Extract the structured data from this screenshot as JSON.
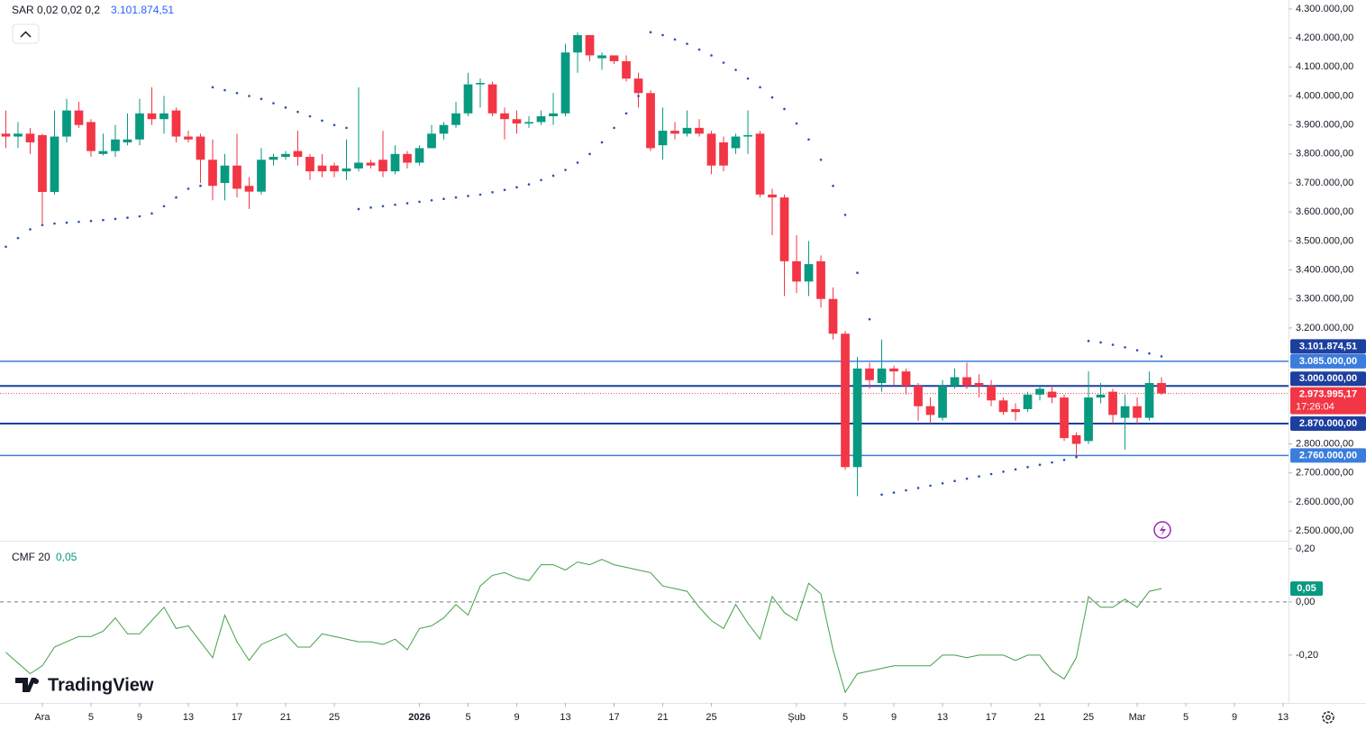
{
  "chart_data": [
    {
      "type": "candlestick",
      "indicator": "SAR 0,02 0,02 0,2",
      "up_color": "#089981",
      "down_color": "#f23645",
      "open": [
        3870000,
        3860000,
        3870000,
        3865000,
        3669000,
        3860000,
        3950000,
        3910000,
        3800000,
        3810000,
        3840000,
        3850000,
        3940000,
        3920000,
        3950000,
        3860000,
        3860000,
        3780000,
        3700000,
        3760000,
        3690000,
        3670000,
        3780000,
        3790000,
        3810000,
        3790000,
        3760000,
        3760000,
        3740000,
        3750000,
        3770000,
        3780000,
        3740000,
        3800000,
        3770000,
        3820000,
        3870000,
        3900000,
        3940000,
        4040000,
        4040000,
        3940000,
        3920000,
        3905000,
        3910000,
        3930000,
        3940000,
        4150000,
        4210000,
        4130000,
        4140000,
        4120000,
        4060000,
        4010000,
        3830000,
        3880000,
        3870000,
        3890000,
        3870000,
        3840000,
        3820000,
        3860000,
        3870000,
        3660000,
        3650000,
        3430000,
        3360000,
        3430000,
        3300000,
        3180000,
        2720000,
        3060000,
        3010000,
        3060000,
        3050000,
        3000000,
        2930000,
        2890000,
        3000000,
        3030000,
        3010000,
        3000000,
        2950000,
        2920000,
        2920000,
        2970000,
        2980000,
        2960000,
        2830000,
        2810000,
        2960000,
        2980000,
        2890000,
        2930000,
        2890000,
        3010000
      ],
      "high": [
        3950000,
        3910000,
        3890000,
        3870000,
        3950000,
        3990000,
        3980000,
        3920000,
        3870000,
        3900000,
        3940000,
        3990000,
        4030000,
        4000000,
        3960000,
        3880000,
        3870000,
        3850000,
        3800000,
        3870000,
        3720000,
        3820000,
        3800000,
        3810000,
        3880000,
        3800000,
        3800000,
        3770000,
        3850000,
        4030000,
        3780000,
        3880000,
        3830000,
        3810000,
        3830000,
        3900000,
        3910000,
        3980000,
        4080000,
        4060000,
        4050000,
        3960000,
        3950000,
        3930000,
        3950000,
        4010000,
        4180000,
        4220000,
        4210000,
        4150000,
        4140000,
        4140000,
        4080000,
        4020000,
        3960000,
        3910000,
        3950000,
        3920000,
        3880000,
        3860000,
        3870000,
        3950000,
        3880000,
        3680000,
        3660000,
        3520000,
        3500000,
        3450000,
        3340000,
        3190000,
        3100000,
        3080000,
        3160000,
        3070000,
        3060000,
        3010000,
        2960000,
        3020000,
        3060000,
        3080000,
        3040000,
        3020000,
        2960000,
        2940000,
        2980000,
        3000000,
        3000000,
        2970000,
        2840000,
        3050000,
        3010000,
        2990000,
        2970000,
        2960000,
        3050000,
        3030000
      ],
      "low": [
        3820000,
        3820000,
        3800000,
        3560000,
        3660000,
        3840000,
        3890000,
        3790000,
        3795000,
        3790000,
        3830000,
        3830000,
        3900000,
        3870000,
        3840000,
        3840000,
        3700000,
        3640000,
        3640000,
        3650000,
        3610000,
        3660000,
        3760000,
        3780000,
        3760000,
        3710000,
        3720000,
        3720000,
        3710000,
        3740000,
        3750000,
        3720000,
        3730000,
        3750000,
        3760000,
        3820000,
        3850000,
        3890000,
        3930000,
        3960000,
        3930000,
        3850000,
        3870000,
        3890000,
        3900000,
        3900000,
        3930000,
        4080000,
        4120000,
        4090000,
        4110000,
        4050000,
        3960000,
        3810000,
        3780000,
        3850000,
        3860000,
        3860000,
        3730000,
        3740000,
        3800000,
        3800000,
        3650000,
        3520000,
        3310000,
        3320000,
        3310000,
        3270000,
        3160000,
        2710000,
        2620000,
        2990000,
        2980000,
        3000000,
        2970000,
        2880000,
        2870000,
        2880000,
        2990000,
        2990000,
        2960000,
        2930000,
        2900000,
        2880000,
        2910000,
        2950000,
        2940000,
        2810000,
        2750000,
        2800000,
        2940000,
        2870000,
        2780000,
        2870000,
        2880000,
        2970000
      ],
      "close": [
        3860000,
        3870000,
        3840000,
        3669000,
        3860000,
        3950000,
        3900000,
        3810000,
        3810000,
        3850000,
        3850000,
        3940000,
        3920000,
        3940000,
        3860000,
        3850000,
        3780000,
        3690000,
        3760000,
        3680000,
        3670000,
        3780000,
        3790000,
        3800000,
        3790000,
        3740000,
        3740000,
        3740000,
        3750000,
        3770000,
        3760000,
        3740000,
        3800000,
        3770000,
        3820000,
        3870000,
        3900000,
        3940000,
        4040000,
        4045000,
        3940000,
        3920000,
        3905000,
        3910000,
        3930000,
        3940000,
        4150000,
        4210000,
        4140000,
        4140000,
        4120000,
        4060000,
        4010000,
        3820000,
        3880000,
        3870000,
        3890000,
        3870000,
        3760000,
        3760000,
        3860000,
        3865000,
        3660000,
        3650000,
        3430000,
        3360000,
        3420000,
        3300000,
        3180000,
        2720000,
        3060000,
        3020000,
        3060000,
        3050000,
        3000000,
        2930000,
        2900000,
        3000000,
        3030000,
        3000000,
        3000000,
        2950000,
        2910000,
        2910000,
        2970000,
        2990000,
        2960000,
        2820000,
        2800000,
        2960000,
        2970000,
        2900000,
        2930000,
        2890000,
        3010000,
        2973995.17
      ],
      "last_price_label": "2.973.995,17",
      "countdown": "17:26:04",
      "sar": {
        "color": "#2a4fb0",
        "last_label": "3.101.874,51",
        "values": [
          3480000,
          3510000,
          3540000,
          3555000,
          3560000,
          3563000,
          3566000,
          3569000,
          3572000,
          3576000,
          3580000,
          3585000,
          3595000,
          3620000,
          3650000,
          3680000,
          3690000,
          4030000,
          4020000,
          4010000,
          4000000,
          3990000,
          3975000,
          3960000,
          3945000,
          3930000,
          3915000,
          3900000,
          3890000,
          3610000,
          3615000,
          3620000,
          3625000,
          3630000,
          3635000,
          3640000,
          3645000,
          3650000,
          3655000,
          3660000,
          3668000,
          3676000,
          3685000,
          3695000,
          3710000,
          3725000,
          3745000,
          3770000,
          3800000,
          3840000,
          3890000,
          3940000,
          4000000,
          4220000,
          4210000,
          4195000,
          4180000,
          4160000,
          4140000,
          4115000,
          4090000,
          4060000,
          4030000,
          3995000,
          3955000,
          3905000,
          3850000,
          3780000,
          3690000,
          3590000,
          3390000,
          3230000,
          2625000,
          2632000,
          2640000,
          2648000,
          2656000,
          2664000,
          2672000,
          2680000,
          2688000,
          2696000,
          2704000,
          2712000,
          2720000,
          2728000,
          2736000,
          2745000,
          2755000,
          3155000,
          3150000,
          3142000,
          3133000,
          3123000,
          3112000,
          3101874.51
        ]
      },
      "hlines": [
        {
          "value": 3085000,
          "label": "3.085.000,00",
          "color": "#3b7ddd"
        },
        {
          "value": 3000000,
          "label": "3.000.000,00",
          "color": "#1d3f9e"
        },
        {
          "value": 2870000,
          "label": "2.870.000,00",
          "color": "#1d3f9e"
        },
        {
          "value": 2760000,
          "label": "2.760.000,00",
          "color": "#3b7ddd"
        }
      ],
      "ylim": [
        2466000,
        4331000
      ],
      "yticks": [
        {
          "value": 4300000,
          "label": "4.300.000,00"
        },
        {
          "value": 4200000,
          "label": "4.200.000,00"
        },
        {
          "value": 4100000,
          "label": "4.100.000,00"
        },
        {
          "value": 4000000,
          "label": "4.000.000,00"
        },
        {
          "value": 3900000,
          "label": "3.900.000,00"
        },
        {
          "value": 3800000,
          "label": "3.800.000,00"
        },
        {
          "value": 3700000,
          "label": "3.700.000,00"
        },
        {
          "value": 3600000,
          "label": "3.600.000,00"
        },
        {
          "value": 3500000,
          "label": "3.500.000,00"
        },
        {
          "value": 3400000,
          "label": "3.400.000,00"
        },
        {
          "value": 3300000,
          "label": "3.300.000,00"
        },
        {
          "value": 3200000,
          "label": "3.200.000,00"
        },
        {
          "value": 2800000,
          "label": "2.800.000,00"
        },
        {
          "value": 2700000,
          "label": "2.700.000,00"
        },
        {
          "value": 2600000,
          "label": "2.600.000,00"
        },
        {
          "value": 2500000,
          "label": "2.500.000,00"
        }
      ],
      "xlim": [
        -0.48,
        105.44
      ],
      "xticks": [
        {
          "value": 3,
          "label": "Ara"
        },
        {
          "value": 7,
          "label": "5"
        },
        {
          "value": 11,
          "label": "9"
        },
        {
          "value": 15,
          "label": "13"
        },
        {
          "value": 19,
          "label": "17"
        },
        {
          "value": 23,
          "label": "21"
        },
        {
          "value": 27,
          "label": "25"
        },
        {
          "value": 34,
          "label": "2026"
        },
        {
          "value": 38,
          "label": "5"
        },
        {
          "value": 42,
          "label": "9"
        },
        {
          "value": 46,
          "label": "13"
        },
        {
          "value": 50,
          "label": "17"
        },
        {
          "value": 54,
          "label": "21"
        },
        {
          "value": 58,
          "label": "25"
        },
        {
          "value": 65,
          "label": "Şub"
        },
        {
          "value": 69,
          "label": "5"
        },
        {
          "value": 73,
          "label": "9"
        },
        {
          "value": 77,
          "label": "13"
        },
        {
          "value": 81,
          "label": "17"
        },
        {
          "value": 85,
          "label": "21"
        },
        {
          "value": 89,
          "label": "25"
        },
        {
          "value": 93,
          "label": "Mar"
        },
        {
          "value": 97,
          "label": "5"
        },
        {
          "value": 101,
          "label": "9"
        },
        {
          "value": 105,
          "label": "13"
        }
      ]
    },
    {
      "type": "line",
      "name": "CMF 20",
      "color": "#43a047",
      "last_label": "0,05",
      "values": [
        -0.19,
        -0.23,
        -0.27,
        -0.24,
        -0.17,
        -0.15,
        -0.13,
        -0.13,
        -0.11,
        -0.06,
        -0.12,
        -0.12,
        -0.07,
        -0.02,
        -0.1,
        -0.09,
        -0.15,
        -0.21,
        -0.05,
        -0.15,
        -0.22,
        -0.16,
        -0.14,
        -0.12,
        -0.17,
        -0.17,
        -0.12,
        -0.13,
        -0.14,
        -0.15,
        -0.15,
        -0.16,
        -0.14,
        -0.18,
        -0.1,
        -0.09,
        -0.06,
        -0.01,
        -0.05,
        0.06,
        0.1,
        0.11,
        0.09,
        0.08,
        0.14,
        0.14,
        0.12,
        0.15,
        0.14,
        0.16,
        0.14,
        0.13,
        0.12,
        0.11,
        0.06,
        0.05,
        0.04,
        -0.02,
        -0.07,
        -0.1,
        -0.01,
        -0.08,
        -0.14,
        0.02,
        -0.04,
        -0.07,
        0.07,
        0.03,
        -0.18,
        -0.34,
        -0.27,
        -0.26,
        -0.25,
        -0.24,
        -0.24,
        -0.24,
        -0.24,
        -0.2,
        -0.2,
        -0.21,
        -0.2,
        -0.2,
        -0.2,
        -0.22,
        -0.2,
        -0.2,
        -0.26,
        -0.29,
        -0.21,
        0.02,
        -0.02,
        -0.02,
        0.01,
        -0.02,
        0.04,
        0.05
      ],
      "ylim": [
        -0.38,
        0.23
      ],
      "yticks": [
        {
          "value": 0.2,
          "label": "0,20"
        },
        {
          "value": 0,
          "label": "0,00"
        },
        {
          "value": -0.2,
          "label": "-0,20"
        }
      ]
    }
  ],
  "brand": "TradingView"
}
